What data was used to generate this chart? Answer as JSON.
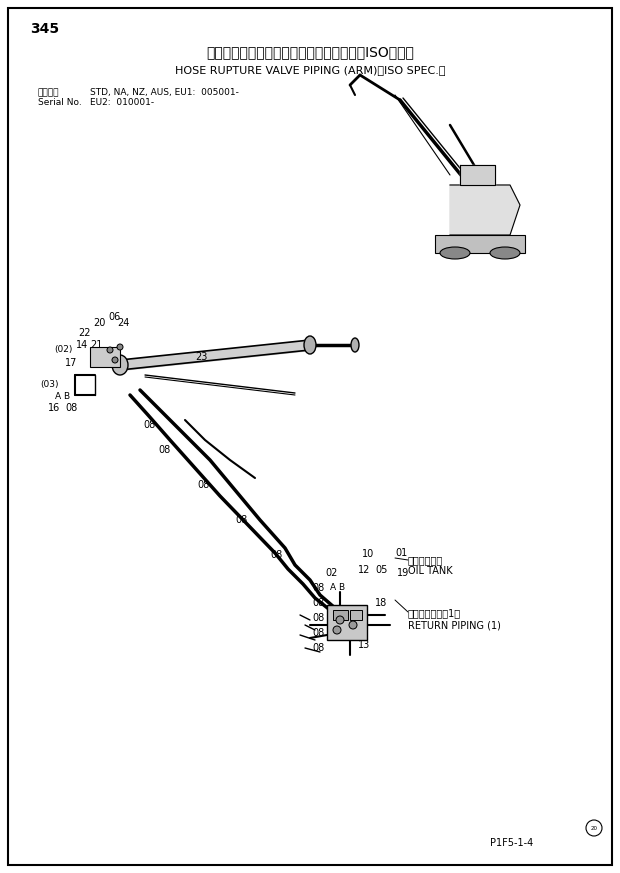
{
  "page_number": "345",
  "title_jp": "ホースラプチャーバルブ配管（アーム）＜ISO仕様＞",
  "title_en": "HOSE RUPTURE VALVE PIPING (ARM)＜ISO SPEC.＞",
  "serial_label": "適用号機",
  "serial_label2": "Serial No.",
  "serial_info1": "STD, NA, NZ, AUS, EU1:  005001-",
  "serial_info2": "EU2:  010001-",
  "page_code": "P1F5-1-4",
  "bg_color": "#ffffff",
  "line_color": "#000000",
  "text_color": "#000000"
}
